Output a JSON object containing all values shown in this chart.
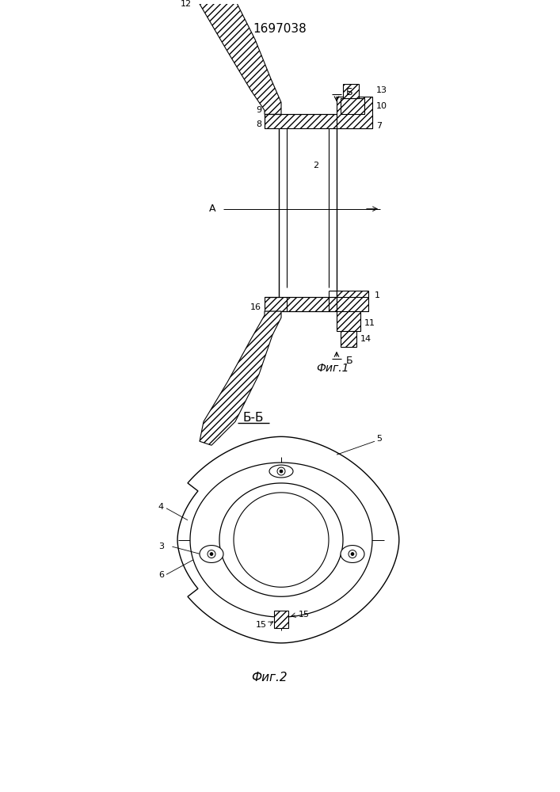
{
  "title": "1697038",
  "fig1_label": "Фиг.1",
  "fig2_label": "Фиг.2",
  "section_label": "Б-Б",
  "label_A": "A",
  "label_B": "Б",
  "bg_color": "#ffffff",
  "line_color": "#000000"
}
